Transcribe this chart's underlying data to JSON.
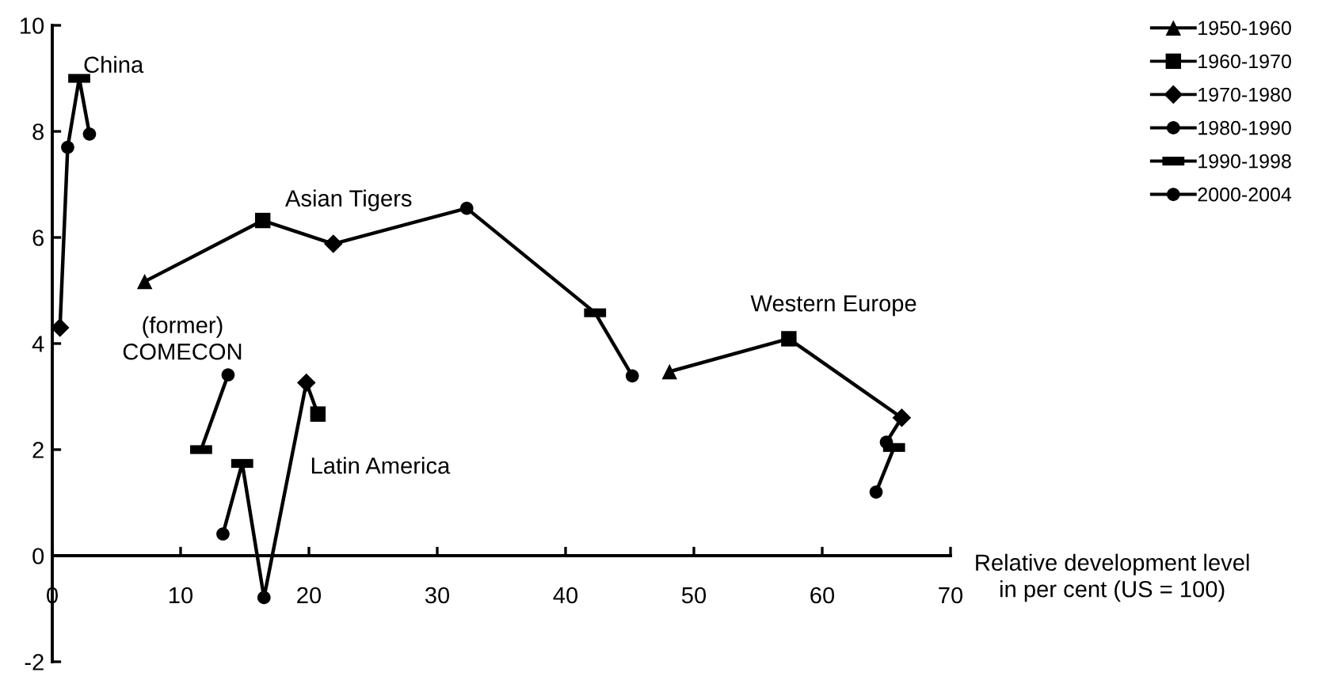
{
  "chart_data": {
    "type": "scatter",
    "xlabel": "Relative development level\nin per cent (US = 100)",
    "xlim": [
      0,
      70
    ],
    "ylim": [
      -2,
      10
    ],
    "xticks": [
      0,
      10,
      20,
      30,
      40,
      50,
      60,
      70
    ],
    "yticks": [
      -2,
      0,
      2,
      4,
      6,
      8,
      10
    ],
    "grid": false,
    "legend": "top right",
    "series": [
      {
        "type": "line",
        "marker": "none",
        "color": "#000000",
        "x": [
          0.6,
          1.2,
          2.1,
          2.9
        ],
        "values": [
          4.3,
          7.7,
          9.0,
          7.95
        ]
      },
      {
        "type": "line",
        "marker": "none",
        "color": "#000000",
        "x": [
          7.2,
          16.4,
          21.9,
          32.3,
          42.3,
          45.2
        ],
        "values": [
          5.17,
          6.32,
          5.88,
          6.55,
          4.58,
          3.39
        ]
      },
      {
        "type": "line",
        "marker": "none",
        "color": "#000000",
        "x": [
          11.6,
          13.7
        ],
        "values": [
          2.0,
          3.41
        ]
      },
      {
        "type": "line",
        "marker": "none",
        "color": "#000000",
        "x": [
          20.7,
          19.8,
          16.5,
          14.8,
          13.3
        ],
        "values": [
          2.67,
          3.26,
          -0.79,
          1.74,
          0.41
        ]
      },
      {
        "type": "line",
        "marker": "none",
        "color": "#000000",
        "x": [
          48.1,
          57.4,
          66.2,
          65.0,
          65.6,
          64.2
        ],
        "values": [
          3.47,
          4.09,
          2.6,
          2.14,
          2.04,
          1.2
        ]
      },
      {
        "name": "1950-1960",
        "marker": "triangle",
        "color": "#000000",
        "x": [
          7.2,
          48.1
        ],
        "values": [
          5.17,
          3.47
        ]
      },
      {
        "name": "1960-1970",
        "marker": "square",
        "color": "#000000",
        "x": [
          16.4,
          57.4,
          20.7
        ],
        "values": [
          6.32,
          4.09,
          2.67
        ]
      },
      {
        "name": "1970-1980",
        "marker": "diamond",
        "color": "#000000",
        "x": [
          0.6,
          21.9,
          66.2,
          19.8
        ],
        "values": [
          4.3,
          5.88,
          2.6,
          3.26
        ]
      },
      {
        "name": "1980-1990",
        "marker": "circle",
        "color": "#000000",
        "x": [
          1.2,
          32.3,
          65.0,
          16.5
        ],
        "values": [
          7.7,
          6.55,
          2.14,
          -0.79
        ]
      },
      {
        "name": "1990-1998",
        "color": "#000000",
        "x": [
          2.1,
          42.3,
          65.6,
          14.8,
          11.6
        ],
        "values": [
          9.0,
          4.58,
          2.04,
          1.74,
          2.0
        ]
      },
      {
        "name": "2000-2004",
        "marker": "circle",
        "color": "#000000",
        "x": [
          2.9,
          45.2,
          64.2,
          13.3,
          13.7
        ],
        "values": [
          7.95,
          3.39,
          1.2,
          0.41,
          3.41
        ]
      }
    ],
    "annotations": [
      "China",
      "Asian Tigers",
      "(former)\nCOMECON",
      "Latin America",
      "Western Europe"
    ]
  }
}
